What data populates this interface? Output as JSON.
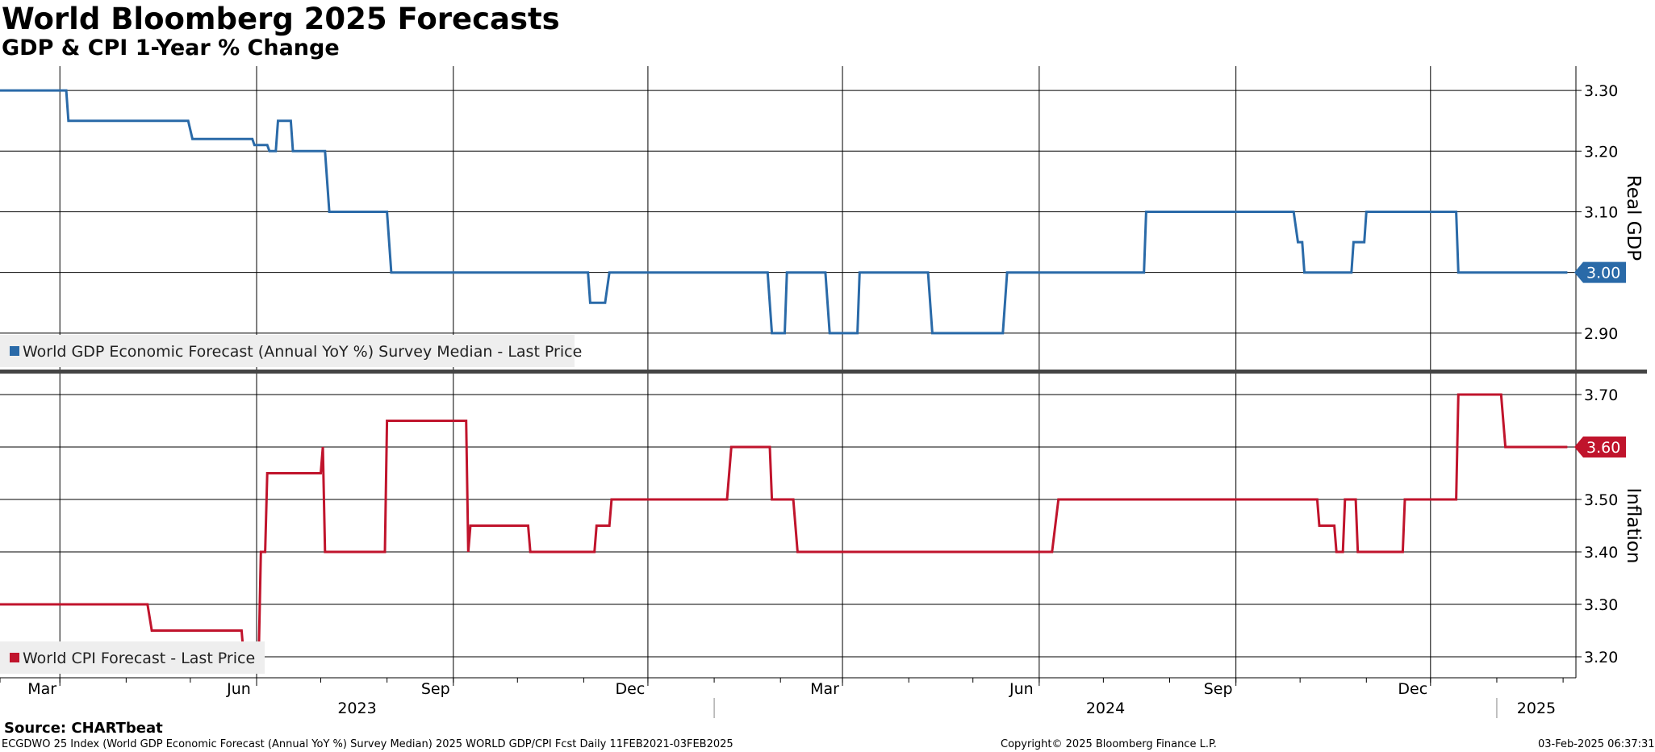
{
  "title": "World Bloomberg 2025 Forecasts",
  "subtitle": "GDP & CPI 1-Year % Change",
  "colors": {
    "gdp": "#2a6aa8",
    "cpi": "#c0142c",
    "grid": "#000000",
    "divider": "#444444",
    "legend_bg": "#eeeeee"
  },
  "footer": {
    "source": "Source: CHARTbeat",
    "description": "ECGDWO 25 Index (World GDP Economic Forecast (Annual YoY %) Survey Median) 2025 WORLD GDP/CPI Fcst  Daily 11FEB2021-03FEB2025",
    "copyright": "Copyright© 2025 Bloomberg Finance L.P.",
    "timestamp": "03-Feb-2025 06:37:31"
  },
  "chart_data": {
    "type": "line",
    "x_axis": {
      "range": [
        "2023-02-01",
        "2025-02-07"
      ],
      "month_ticks": [
        {
          "date": "2023-03-01",
          "label": "Mar"
        },
        {
          "date": "2023-06-01",
          "label": "Jun"
        },
        {
          "date": "2023-09-01",
          "label": "Sep"
        },
        {
          "date": "2023-12-01",
          "label": "Dec"
        },
        {
          "date": "2024-03-01",
          "label": "Mar"
        },
        {
          "date": "2024-06-01",
          "label": "Jun"
        },
        {
          "date": "2024-09-01",
          "label": "Sep"
        },
        {
          "date": "2024-12-01",
          "label": "Dec"
        }
      ],
      "year_labels": [
        {
          "label": "2023",
          "from": "2023-02-01",
          "to": "2024-01-01"
        },
        {
          "label": "2024",
          "from": "2024-01-01",
          "to": "2025-01-01"
        },
        {
          "label": "2025",
          "from": "2025-01-01",
          "to": "2025-02-07"
        }
      ]
    },
    "panels": [
      {
        "ylabel": "Real GDP",
        "ylim": [
          2.84,
          3.34
        ],
        "yticks": [
          "3.30",
          "3.20",
          "3.10",
          "3.00",
          "2.90"
        ],
        "last_value": "3.00",
        "legend": "World GDP Economic Forecast (Annual YoY %) Survey Median - Last Price",
        "series": [
          {
            "name": "World GDP Economic Forecast (Annual YoY %) Survey Median - Last Price",
            "points": [
              [
                "2023-02-01",
                3.3
              ],
              [
                "2023-03-04",
                3.3
              ],
              [
                "2023-03-05",
                3.25
              ],
              [
                "2023-04-30",
                3.25
              ],
              [
                "2023-05-02",
                3.22
              ],
              [
                "2023-05-30",
                3.22
              ],
              [
                "2023-05-31",
                3.21
              ],
              [
                "2023-06-06",
                3.21
              ],
              [
                "2023-06-07",
                3.2
              ],
              [
                "2023-06-10",
                3.2
              ],
              [
                "2023-06-11",
                3.25
              ],
              [
                "2023-06-17",
                3.25
              ],
              [
                "2023-06-18",
                3.2
              ],
              [
                "2023-07-03",
                3.2
              ],
              [
                "2023-07-05",
                3.1
              ],
              [
                "2023-08-01",
                3.1
              ],
              [
                "2023-08-03",
                3.0
              ],
              [
                "2023-11-03",
                3.0
              ],
              [
                "2023-11-04",
                2.95
              ],
              [
                "2023-11-11",
                2.95
              ],
              [
                "2023-11-13",
                3.0
              ],
              [
                "2024-01-26",
                3.0
              ],
              [
                "2024-01-28",
                2.9
              ],
              [
                "2024-02-03",
                2.9
              ],
              [
                "2024-02-04",
                3.0
              ],
              [
                "2024-02-22",
                3.0
              ],
              [
                "2024-02-24",
                2.9
              ],
              [
                "2024-03-08",
                2.9
              ],
              [
                "2024-03-09",
                3.0
              ],
              [
                "2024-04-10",
                3.0
              ],
              [
                "2024-04-12",
                2.9
              ],
              [
                "2024-05-15",
                2.9
              ],
              [
                "2024-05-17",
                3.0
              ],
              [
                "2024-07-20",
                3.0
              ],
              [
                "2024-07-21",
                3.1
              ],
              [
                "2024-09-28",
                3.1
              ],
              [
                "2024-09-30",
                3.05
              ],
              [
                "2024-10-02",
                3.05
              ],
              [
                "2024-10-03",
                3.0
              ],
              [
                "2024-10-25",
                3.0
              ],
              [
                "2024-10-26",
                3.05
              ],
              [
                "2024-10-31",
                3.05
              ],
              [
                "2024-11-01",
                3.1
              ],
              [
                "2024-12-13",
                3.1
              ],
              [
                "2024-12-14",
                3.0
              ],
              [
                "2025-02-03",
                3.0
              ]
            ]
          }
        ]
      },
      {
        "ylabel": "Inflation",
        "ylim": [
          3.16,
          3.74
        ],
        "yticks": [
          "3.70",
          "3.60",
          "3.50",
          "3.40",
          "3.30",
          "3.20"
        ],
        "last_value": "3.60",
        "legend": "World CPI Forecast - Last Price",
        "series": [
          {
            "name": "World CPI Forecast - Last Price",
            "points": [
              [
                "2023-02-01",
                3.3
              ],
              [
                "2023-04-11",
                3.3
              ],
              [
                "2023-04-13",
                3.25
              ],
              [
                "2023-05-25",
                3.25
              ],
              [
                "2023-05-26",
                3.2
              ],
              [
                "2023-06-02",
                3.2
              ],
              [
                "2023-06-03",
                3.4
              ],
              [
                "2023-06-05",
                3.4
              ],
              [
                "2023-06-06",
                3.55
              ],
              [
                "2023-07-01",
                3.55
              ],
              [
                "2023-07-02",
                3.6
              ],
              [
                "2023-07-03",
                3.4
              ],
              [
                "2023-07-31",
                3.4
              ],
              [
                "2023-08-01",
                3.65
              ],
              [
                "2023-09-07",
                3.65
              ],
              [
                "2023-09-08",
                3.4
              ],
              [
                "2023-09-09",
                3.45
              ],
              [
                "2023-10-06",
                3.45
              ],
              [
                "2023-10-07",
                3.4
              ],
              [
                "2023-11-06",
                3.4
              ],
              [
                "2023-11-07",
                3.45
              ],
              [
                "2023-11-13",
                3.45
              ],
              [
                "2023-11-14",
                3.5
              ],
              [
                "2024-01-07",
                3.5
              ],
              [
                "2024-01-09",
                3.6
              ],
              [
                "2024-01-27",
                3.6
              ],
              [
                "2024-01-28",
                3.5
              ],
              [
                "2024-02-07",
                3.5
              ],
              [
                "2024-02-09",
                3.4
              ],
              [
                "2024-06-07",
                3.4
              ],
              [
                "2024-06-10",
                3.5
              ],
              [
                "2024-10-09",
                3.5
              ],
              [
                "2024-10-10",
                3.45
              ],
              [
                "2024-10-17",
                3.45
              ],
              [
                "2024-10-18",
                3.4
              ],
              [
                "2024-10-21",
                3.4
              ],
              [
                "2024-10-22",
                3.5
              ],
              [
                "2024-10-27",
                3.5
              ],
              [
                "2024-10-28",
                3.4
              ],
              [
                "2024-11-18",
                3.4
              ],
              [
                "2024-11-19",
                3.5
              ],
              [
                "2024-12-13",
                3.5
              ],
              [
                "2024-12-14",
                3.7
              ],
              [
                "2025-01-03",
                3.7
              ],
              [
                "2025-01-05",
                3.6
              ],
              [
                "2025-02-03",
                3.6
              ]
            ]
          }
        ]
      }
    ]
  }
}
